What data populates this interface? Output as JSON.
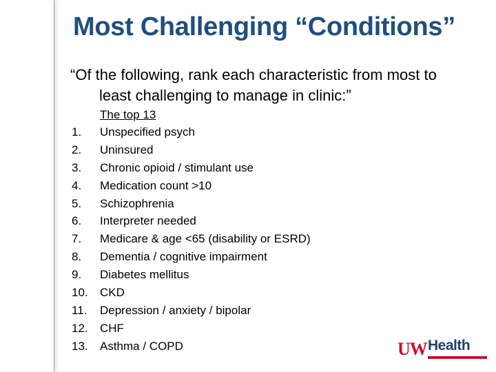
{
  "slide": {
    "title": "Most Challenging “Conditions”",
    "question_line1": "“Of the following, rank each characteristic from most to",
    "question_line2": "least challenging to manage in clinic:”",
    "subhead": "The top 13",
    "items": [
      {
        "num": "1.",
        "text": "Unspecified psych"
      },
      {
        "num": "2.",
        "text": "Uninsured"
      },
      {
        "num": "3.",
        "text": "Chronic opioid / stimulant use"
      },
      {
        "num": "4.",
        "text": "Medication count >10"
      },
      {
        "num": "5.",
        "text": "Schizophrenia"
      },
      {
        "num": "6.",
        "text": "Interpreter needed"
      },
      {
        "num": "7.",
        "text": "Medicare & age <65 (disability or ESRD)"
      },
      {
        "num": "8.",
        "text": "Dementia / cognitive impairment"
      },
      {
        "num": "9.",
        "text": "Diabetes mellitus"
      },
      {
        "num": "10.",
        "text": "CKD"
      },
      {
        "num": "11.",
        "text": "Depression / anxiety / bipolar"
      },
      {
        "num": "12.",
        "text": "CHF"
      },
      {
        "num": "13.",
        "text": "Asthma / COPD"
      }
    ]
  },
  "logo": {
    "part1": "UW",
    "part2": "Health"
  },
  "colors": {
    "title": "#1f4f7e",
    "logo_red": "#c8102e",
    "logo_blue": "#1f3f6e"
  }
}
